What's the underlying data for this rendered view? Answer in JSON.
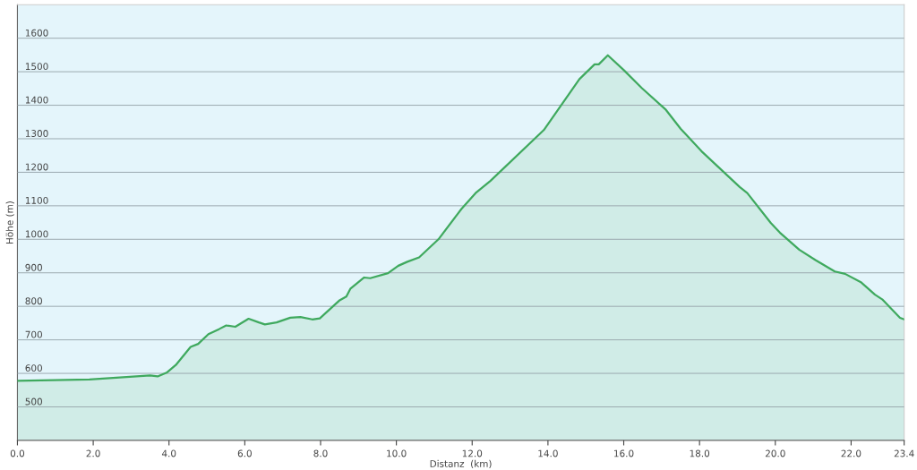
{
  "chart_data": {
    "type": "area",
    "xlabel": "Distanz  (km)",
    "ylabel": "Höhe (m)",
    "x": [
      0,
      1.9,
      3.5,
      3.7,
      3.95,
      4.18,
      4.57,
      4.77,
      5.04,
      5.32,
      5.51,
      5.75,
      6.1,
      6.37,
      6.53,
      6.84,
      7.2,
      7.47,
      7.78,
      7.98,
      8.49,
      8.68,
      8.79,
      9.15,
      9.31,
      9.78,
      10.05,
      10.29,
      10.6,
      11.11,
      11.72,
      12.09,
      12.48,
      13.89,
      14.83,
      15.23,
      15.34,
      15.58,
      16.01,
      16.48,
      17.1,
      17.5,
      18.05,
      19.06,
      19.26,
      19.88,
      20.12,
      20.63,
      21.06,
      21.57,
      21.84,
      22.27,
      22.63,
      22.82,
      23.29,
      23.4
    ],
    "series": [
      {
        "color": "#3fa95e",
        "values": [
          578,
          582,
          594,
          591,
          603,
          625,
          679,
          688,
          717,
          732,
          743,
          739,
          763,
          752,
          746,
          752,
          766,
          768,
          761,
          764,
          817,
          829,
          853,
          886,
          884,
          899,
          921,
          933,
          946,
          1000,
          1091,
          1138,
          1174,
          1326,
          1478,
          1522,
          1522,
          1549,
          1504,
          1451,
          1388,
          1330,
          1263,
          1156,
          1138,
          1049,
          1020,
          969,
          938,
          904,
          897,
          871,
          835,
          821,
          766,
          761
        ]
      }
    ],
    "xlim": [
      0,
      23.4
    ],
    "ylim": [
      400,
      1700
    ],
    "xticks": [
      {
        "value": 0,
        "label": "0.0"
      },
      {
        "value": 2,
        "label": "2.0"
      },
      {
        "value": 4,
        "label": "4.0"
      },
      {
        "value": 6,
        "label": "6.0"
      },
      {
        "value": 8,
        "label": "8.0"
      },
      {
        "value": 10,
        "label": "10.0"
      },
      {
        "value": 12,
        "label": "12.0"
      },
      {
        "value": 14,
        "label": "14.0"
      },
      {
        "value": 16,
        "label": "16.0"
      },
      {
        "value": 18,
        "label": "18.0"
      },
      {
        "value": 20,
        "label": "20.0"
      },
      {
        "value": 22,
        "label": "22.0"
      },
      {
        "value": 23.4,
        "label": "23.4"
      }
    ],
    "yticks": [
      500,
      600,
      700,
      800,
      900,
      1000,
      1100,
      1200,
      1300,
      1400,
      1500,
      1600
    ],
    "grid": "y"
  }
}
